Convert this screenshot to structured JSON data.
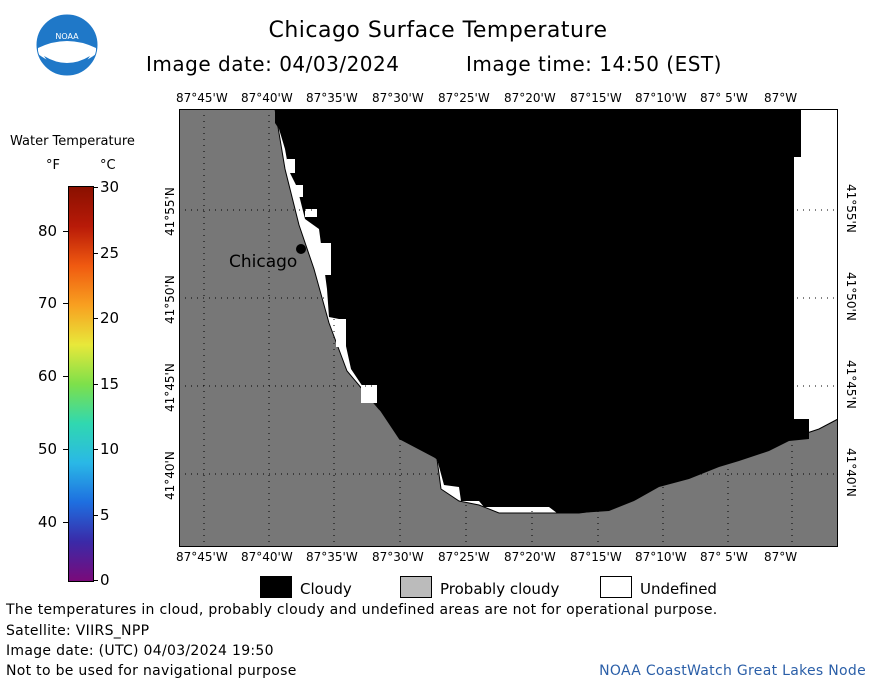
{
  "header": {
    "title": "Chicago Surface Temperature",
    "image_date": "Image date: 04/03/2024",
    "image_time": "Image time: 14:50 (EST)"
  },
  "logo": {
    "text": "NOAA",
    "icon": "noaa-logo"
  },
  "colorbar": {
    "title": "Water Temperature",
    "unit_f": "°F",
    "unit_c": "°C",
    "f_ticks": [
      "80",
      "70",
      "60",
      "50",
      "40"
    ],
    "c_ticks": [
      "30",
      "25",
      "20",
      "15",
      "10",
      "5",
      "0"
    ],
    "colors": [
      "#7a0a7a",
      "#3a2aa8",
      "#1e6fe0",
      "#2ab8e6",
      "#30d8b0",
      "#7ee04a",
      "#e8e83a",
      "#f8a020",
      "#f05a10",
      "#b81a08",
      "#8a1000"
    ]
  },
  "map": {
    "top_lon_labels": [
      "87°45'W",
      "87°40'W",
      "87°35'W",
      "87°30'W",
      "87°25'W",
      "87°20'W",
      "87°15'W",
      "87°10'W",
      "87° 5'W",
      "87°W"
    ],
    "bottom_lon_labels": [
      "87°45'W",
      "87°40'W",
      "87°35'W",
      "87°30'W",
      "87°25'W",
      "87°20'W",
      "87°15'W",
      "87°10'W",
      "87° 5'W",
      "87°W"
    ],
    "left_lat_labels": [
      "41°55'N",
      "41°50'N",
      "41°45'N",
      "41°40'N"
    ],
    "right_lat_labels": [
      "41°55'N",
      "41°50'N",
      "41°45'N",
      "41°40'N"
    ],
    "city_label": "Chicago",
    "colors": {
      "land": "#777777",
      "cloudy": "#000000",
      "undefined": "#ffffff"
    }
  },
  "legend": {
    "items": [
      {
        "label": "Cloudy",
        "color": "#000000"
      },
      {
        "label": "Probably cloudy",
        "color": "#bbbbbb"
      },
      {
        "label": "Undefined",
        "color": "#ffffff"
      }
    ]
  },
  "footer": {
    "note": "The temperatures in cloud, probably cloudy and undefined areas are not for operational purpose.",
    "satellite": "Satellite: VIIRS_NPP",
    "utc_date": "Image date: (UTC) 04/03/2024  19:50",
    "nav_warning": "Not to be used for navigational purpose",
    "credit": "NOAA CoastWatch Great Lakes Node"
  }
}
